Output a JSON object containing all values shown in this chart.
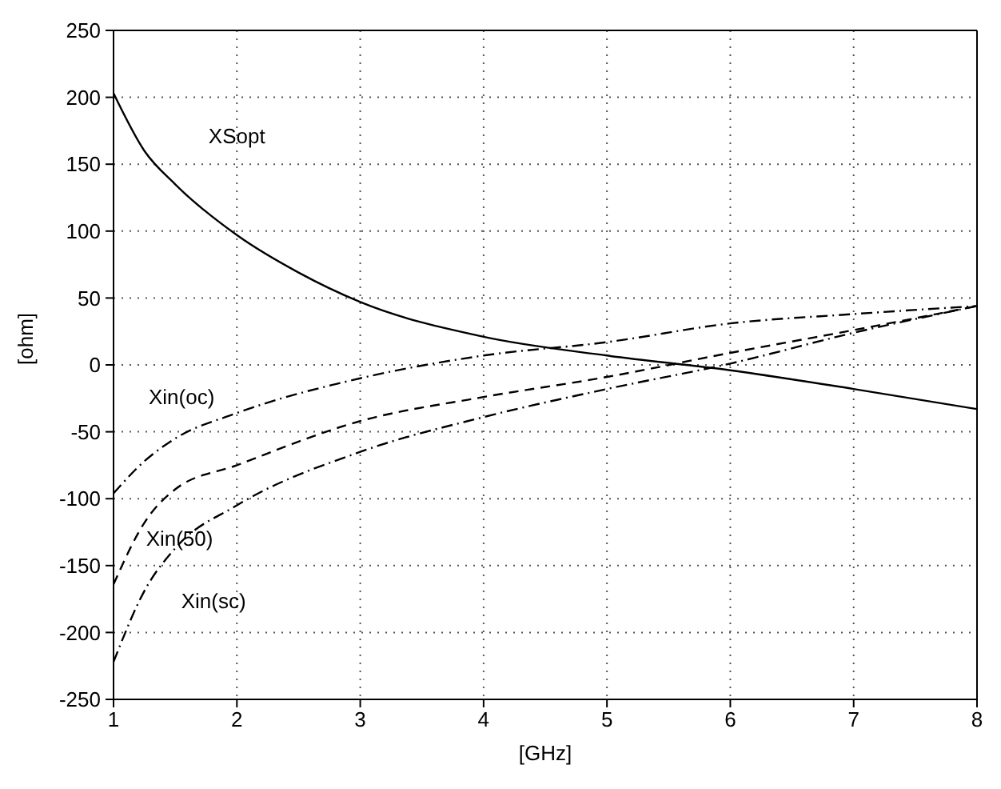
{
  "chart_data": {
    "type": "line",
    "xlabel": "[GHz]",
    "ylabel": "[ohm]",
    "xlim": [
      1,
      8
    ],
    "xticks": [
      1,
      2,
      3,
      4,
      5,
      6,
      7,
      8
    ],
    "ylim": [
      -250,
      250
    ],
    "yticks": [
      -250,
      -200,
      -150,
      -100,
      -50,
      0,
      50,
      100,
      150,
      200,
      250
    ],
    "grid": true,
    "marker": "none",
    "series": [
      {
        "name": "XSopt",
        "color": "#000000",
        "line_style": "solid",
        "x": [
          1,
          1.25,
          1.5,
          2,
          2.5,
          3,
          4,
          5,
          6,
          7,
          8
        ],
        "values": [
          203,
          160,
          135,
          97,
          69,
          47,
          21,
          7,
          -4,
          -18,
          -33
        ]
      },
      {
        "name": "Xin(oc)",
        "color": "#000000",
        "line_style": "dashdot",
        "x": [
          1,
          1.25,
          1.5,
          2,
          3,
          4,
          5,
          6,
          7,
          8
        ],
        "values": [
          -96,
          -72,
          -55,
          -36,
          -10,
          7,
          17,
          31,
          38,
          44
        ]
      },
      {
        "name": "Xin(50)",
        "color": "#000000",
        "line_style": "dashed",
        "x": [
          1,
          1.25,
          1.5,
          2,
          3,
          4,
          5,
          6,
          7,
          8
        ],
        "values": [
          -164,
          -118,
          -93,
          -75,
          -42,
          -24,
          -9,
          9,
          26,
          44
        ]
      },
      {
        "name": "Xin(sc)",
        "color": "#000000",
        "line_style": "dashdot",
        "x": [
          1,
          1.25,
          1.5,
          2,
          3,
          4,
          5,
          6,
          7,
          8
        ],
        "values": [
          -222,
          -169,
          -137,
          -105,
          -65,
          -39,
          -18,
          1,
          24,
          44
        ]
      }
    ]
  }
}
